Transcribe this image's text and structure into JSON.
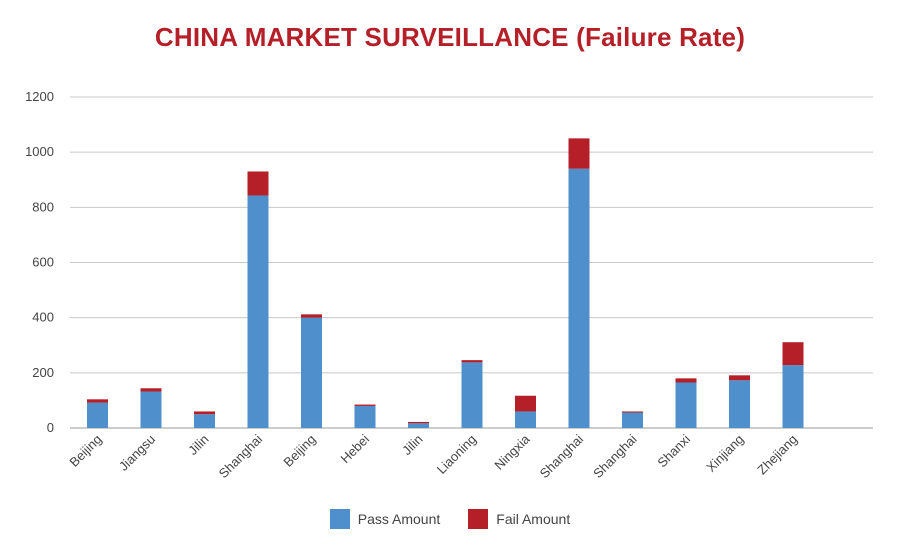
{
  "chart_data": {
    "type": "bar",
    "stacked": true,
    "title": "CHINA MARKET SURVEILLANCE (Failure Rate)",
    "xlabel": "",
    "ylabel": "",
    "ylim": [
      0,
      1200
    ],
    "yticks": [
      0,
      200,
      400,
      600,
      800,
      1000,
      1200
    ],
    "grid": true,
    "legend_position": "bottom",
    "categories": [
      "Beijing",
      "Jiangsu",
      "Jilin",
      "Shanghai",
      "Beijing",
      "Hebei",
      "Jilin",
      "Liaoning",
      "Ningxia",
      "Shanghai",
      "Shanghai",
      "Shanxi",
      "Xinjiang",
      "Zhejiang"
    ],
    "series": [
      {
        "name": "Pass Amount",
        "color": "#4f8fcb",
        "values": [
          92,
          132,
          50,
          843,
          400,
          80,
          17,
          238,
          60,
          940,
          56,
          165,
          173,
          228
        ]
      },
      {
        "name": "Fail Amount",
        "color": "#b51f27",
        "values": [
          12,
          12,
          10,
          87,
          12,
          5,
          5,
          8,
          57,
          110,
          4,
          15,
          18,
          83
        ]
      }
    ]
  },
  "colors": {
    "title": "#b51f27",
    "grid": "#c8c8c8",
    "axis_text": "#444444"
  }
}
